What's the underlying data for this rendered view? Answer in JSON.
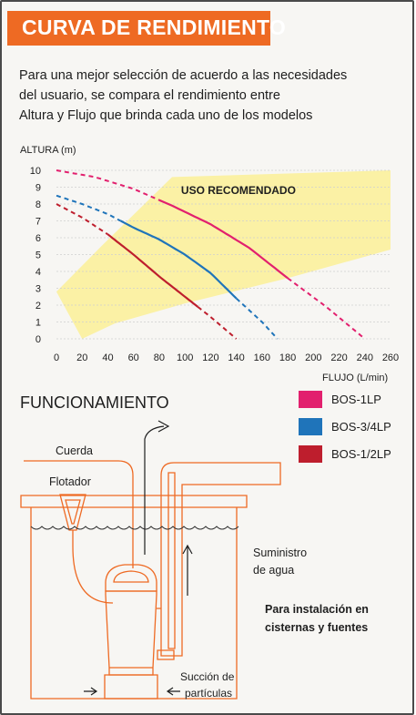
{
  "header": {
    "title": "CURVA DE RENDIMIENTO"
  },
  "intro": {
    "lines": [
      "Para una mejor selección de acuerdo a las necesidades",
      "del usuario, se compara el rendimiento entre",
      "Altura y Flujo que brinda cada uno de los modelos"
    ]
  },
  "chart_data": {
    "type": "line",
    "ylabel": "ALTURA (m)",
    "xlabel": "FLUJO (L/min)",
    "xlim": [
      0,
      260
    ],
    "ylim": [
      0,
      10
    ],
    "x_ticks": [
      0,
      20,
      40,
      60,
      80,
      100,
      120,
      140,
      160,
      180,
      200,
      220,
      240,
      260
    ],
    "y_ticks": [
      0,
      1,
      2,
      3,
      4,
      5,
      6,
      7,
      8,
      9,
      10
    ],
    "grid": true,
    "legend": "right",
    "recommended_zone": {
      "label": "USO RECOMENDADO",
      "color": "#fbf1a5",
      "polygon": [
        [
          0,
          2.8
        ],
        [
          35,
          5.5
        ],
        [
          90,
          9.6
        ],
        [
          260,
          10
        ],
        [
          260,
          5.3
        ],
        [
          180,
          3.6
        ],
        [
          100,
          2.1
        ],
        [
          45,
          0.9
        ],
        [
          20,
          0
        ]
      ]
    },
    "series": [
      {
        "name": "BOS-1LP",
        "color": "#e2206e",
        "points": [
          [
            0,
            10
          ],
          [
            30,
            9.6
          ],
          [
            60,
            8.9
          ],
          [
            90,
            7.9
          ],
          [
            120,
            6.8
          ],
          [
            150,
            5.4
          ],
          [
            180,
            3.6
          ],
          [
            210,
            1.9
          ],
          [
            240,
            0
          ]
        ],
        "solid_range": [
          80,
          180
        ]
      },
      {
        "name": "BOS-3/4LP",
        "color": "#1f74ba",
        "points": [
          [
            0,
            8.5
          ],
          [
            20,
            8.0
          ],
          [
            40,
            7.4
          ],
          [
            60,
            6.6
          ],
          [
            80,
            5.9
          ],
          [
            100,
            5.0
          ],
          [
            120,
            3.9
          ],
          [
            140,
            2.4
          ],
          [
            160,
            1.0
          ],
          [
            172,
            0
          ]
        ],
        "solid_range": [
          50,
          140
        ]
      },
      {
        "name": "BOS-1/2LP",
        "color": "#be1e2d",
        "points": [
          [
            0,
            8
          ],
          [
            20,
            7.2
          ],
          [
            40,
            6.2
          ],
          [
            60,
            5.0
          ],
          [
            80,
            3.7
          ],
          [
            100,
            2.5
          ],
          [
            120,
            1.3
          ],
          [
            140,
            0
          ]
        ],
        "solid_range": [
          40,
          110
        ]
      }
    ]
  },
  "funcionamiento": {
    "title": "FUNCIONAMIENTO",
    "labels": {
      "cuerda": "Cuerda",
      "flotador": "Flotador",
      "suministro_1": "Suministro",
      "suministro_2": "de agua",
      "instalacion_1": "Para instalación en",
      "instalacion_2": "cisternas y fuentes",
      "succion_1": "Succión de",
      "succion_2": "partículas"
    }
  },
  "colors": {
    "accent": "#ee6a23",
    "line_art": "#ee6a23"
  }
}
